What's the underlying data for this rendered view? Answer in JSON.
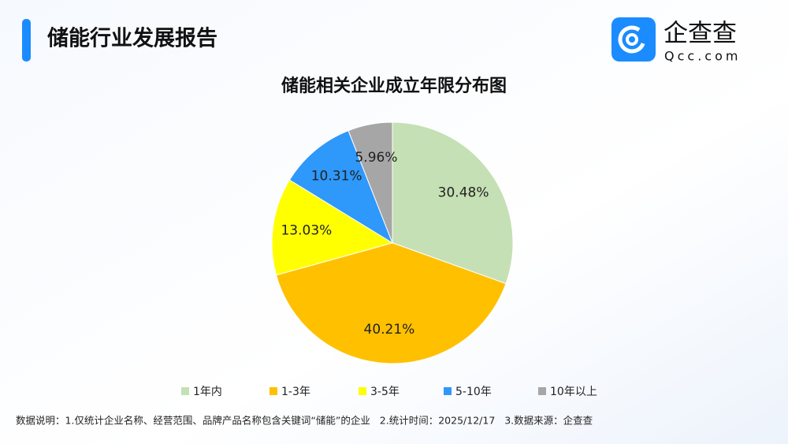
{
  "header": {
    "title": "储能行业发展报告",
    "logo_name": "企查查",
    "logo_domain": "Qcc.com"
  },
  "footnote": "数据说明：1.仅统计企业名称、经营范围、品牌产品名称包含关键词“储能”的企业   2.统计时间：2025/12/17   3.数据来源：企查查",
  "chart_data": {
    "type": "pie",
    "title": "储能相关企业成立年限分布图",
    "categories": [
      "1年内",
      "1-3年",
      "3-5年",
      "5-10年",
      "10年以上"
    ],
    "values": [
      30.48,
      40.21,
      13.03,
      10.31,
      5.96
    ],
    "value_labels": [
      "30.48%",
      "40.21%",
      "13.03%",
      "10.31%",
      "5.96%"
    ],
    "colors": [
      "#c5e0b4",
      "#ffc000",
      "#ffff00",
      "#2e98fb",
      "#a6a6a6"
    ],
    "legend": "bottom"
  }
}
